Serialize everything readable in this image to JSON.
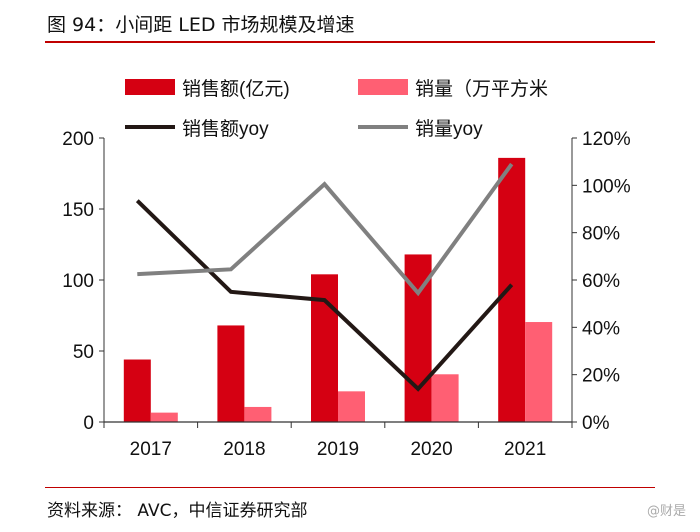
{
  "title": "图 94：小间距 LED 市场规模及增速",
  "source": "资料来源：  AVC，中信证券研究部",
  "watermark": "@财是",
  "chart_data": {
    "type": "bar+line",
    "categories": [
      "2017",
      "2018",
      "2019",
      "2020",
      "2021"
    ],
    "left_axis": {
      "ylim": [
        0,
        200
      ],
      "ticks": [
        "0",
        "50",
        "100",
        "150",
        "200"
      ]
    },
    "right_axis": {
      "ylim": [
        0,
        120
      ],
      "ticks": [
        "0%",
        "20%",
        "40%",
        "60%",
        "80%",
        "100%",
        "120%"
      ]
    },
    "legend_placement": "top",
    "series": [
      {
        "name": "销售额(亿元)",
        "type": "bar",
        "axis": "left",
        "color": "#d50012",
        "values": [
          44,
          68,
          104,
          118,
          186
        ]
      },
      {
        "name": "销量（万平方米",
        "type": "bar",
        "axis": "left",
        "color": "#ff5f73",
        "values": [
          6.6,
          10.6,
          21.6,
          33.6,
          70.4
        ]
      },
      {
        "name": "销售额yoy",
        "type": "line",
        "axis": "right",
        "color": "#231815",
        "values": [
          93.5,
          55,
          51.5,
          14,
          58
        ]
      },
      {
        "name": "销量yoy",
        "type": "line",
        "axis": "right",
        "color": "#808080",
        "values": [
          62.5,
          64.5,
          100.5,
          54.5,
          109
        ]
      }
    ]
  }
}
